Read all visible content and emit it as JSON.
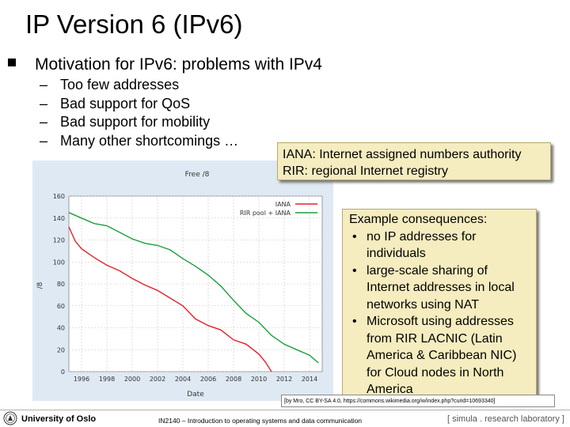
{
  "slide": {
    "title": "IP Version 6 (IPv6)",
    "main_bullet": "Motivation for IPv6: problems with IPv4",
    "sub_bullets": [
      "Too few addresses",
      "Bad support for QoS",
      "Bad support for mobility",
      "Many other shortcomings …"
    ],
    "dash": "–"
  },
  "note1": {
    "line1": "IANA: Internet assigned numbers authority",
    "line2": "RIR: regional Internet registry"
  },
  "note2": {
    "heading": "Example consequences:",
    "items": [
      "no IP addresses for individuals",
      "large-scale sharing of Internet addresses in local networks using NAT",
      "Microsoft using addresses from RIR LACNIC (Latin America & Caribbean NIC) for Cloud nodes in North America"
    ]
  },
  "credit": "[by Mro, CC BY-SA 4.0, https://commons.wikimedia.org/w/index.php?curid=10693340]",
  "footer": {
    "university": "University of Oslo",
    "course": "IN2140 – Introduction to operating systems and data communication",
    "lab_prefix": "[ simula",
    "lab_dot": " . ",
    "lab_suffix": "research laboratory ]"
  },
  "chart_data": {
    "type": "line",
    "title": "Free /8",
    "xlabel": "Date",
    "ylabel": "/8",
    "xlim": [
      1995,
      2015
    ],
    "ylim": [
      0,
      160
    ],
    "x_ticks": [
      "1996",
      "1998",
      "2000",
      "2002",
      "2004",
      "2006",
      "2008",
      "2010",
      "2012",
      "2014"
    ],
    "y_ticks": [
      "0",
      "20",
      "40",
      "60",
      "80",
      "100",
      "120",
      "140",
      "160"
    ],
    "grid": true,
    "legend_position": "top-right",
    "series": [
      {
        "name": "IANA",
        "color": "#e8202a",
        "points": [
          [
            1995.0,
            132
          ],
          [
            1995.5,
            119
          ],
          [
            1996.0,
            112
          ],
          [
            1997.0,
            104
          ],
          [
            1998.0,
            97
          ],
          [
            1999.0,
            92
          ],
          [
            2000.0,
            85
          ],
          [
            2001.0,
            79
          ],
          [
            2002.0,
            74
          ],
          [
            2003.0,
            67
          ],
          [
            2004.0,
            60
          ],
          [
            2005.0,
            48
          ],
          [
            2006.0,
            42
          ],
          [
            2007.0,
            38
          ],
          [
            2008.0,
            29
          ],
          [
            2009.0,
            25
          ],
          [
            2010.0,
            16
          ],
          [
            2010.5,
            9
          ],
          [
            2011.0,
            0
          ]
        ]
      },
      {
        "name": "RIR pool + IANA",
        "color": "#1a9e3a",
        "points": [
          [
            1995.0,
            145
          ],
          [
            1996.0,
            140
          ],
          [
            1997.0,
            135
          ],
          [
            1998.0,
            133
          ],
          [
            1999.0,
            127
          ],
          [
            2000.0,
            121
          ],
          [
            2001.0,
            117
          ],
          [
            2002.0,
            115
          ],
          [
            2003.0,
            111
          ],
          [
            2004.0,
            103
          ],
          [
            2005.0,
            96
          ],
          [
            2006.0,
            88
          ],
          [
            2007.0,
            78
          ],
          [
            2008.0,
            65
          ],
          [
            2009.0,
            53
          ],
          [
            2010.0,
            45
          ],
          [
            2011.0,
            33
          ],
          [
            2012.0,
            25
          ],
          [
            2013.0,
            20
          ],
          [
            2014.0,
            15
          ],
          [
            2014.7,
            8
          ]
        ]
      }
    ]
  }
}
